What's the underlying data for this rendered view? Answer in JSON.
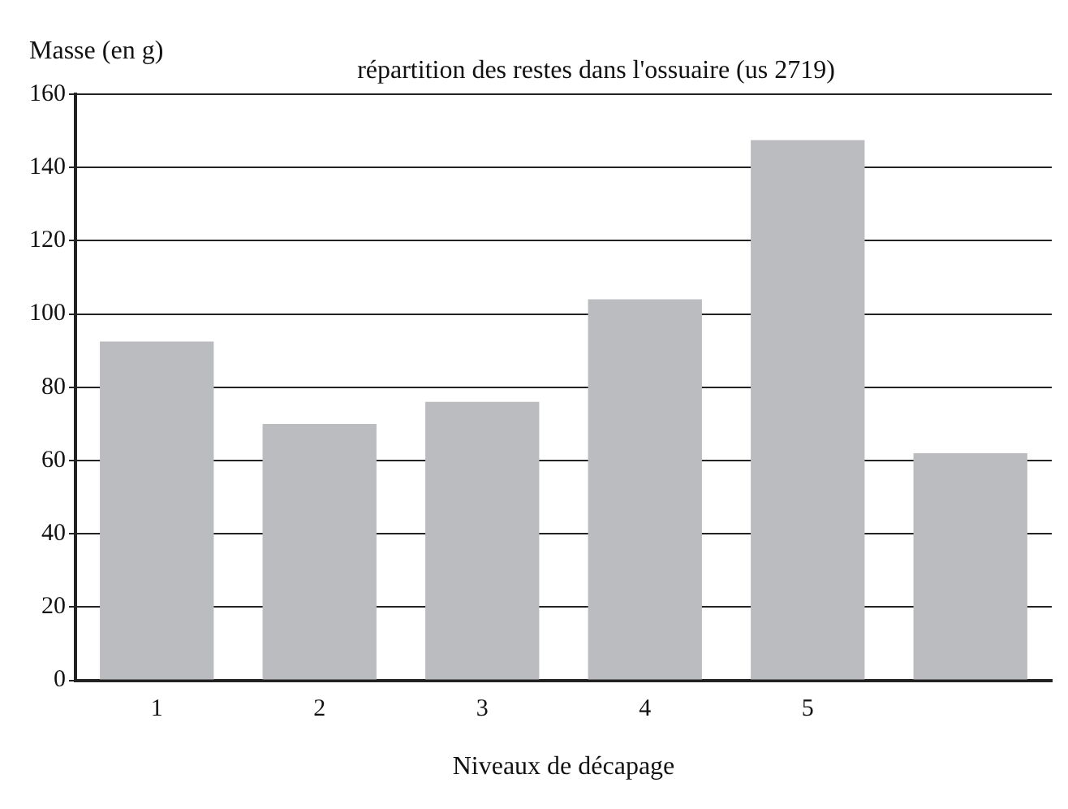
{
  "chart_data": {
    "type": "bar",
    "title": "répartition des restes dans l'ossuaire (us 2719)",
    "xlabel": "Niveaux de décapage",
    "ylabel": "Masse (en g)",
    "categories": [
      "1",
      "2",
      "3",
      "4",
      "5",
      null
    ],
    "values": [
      92.5,
      70,
      76,
      104,
      147.5,
      62
    ],
    "color": "#bbbcc0",
    "ylim": [
      0,
      160
    ],
    "yticks": [
      0,
      20,
      40,
      60,
      80,
      100,
      120,
      140,
      160
    ],
    "grid": "y"
  }
}
